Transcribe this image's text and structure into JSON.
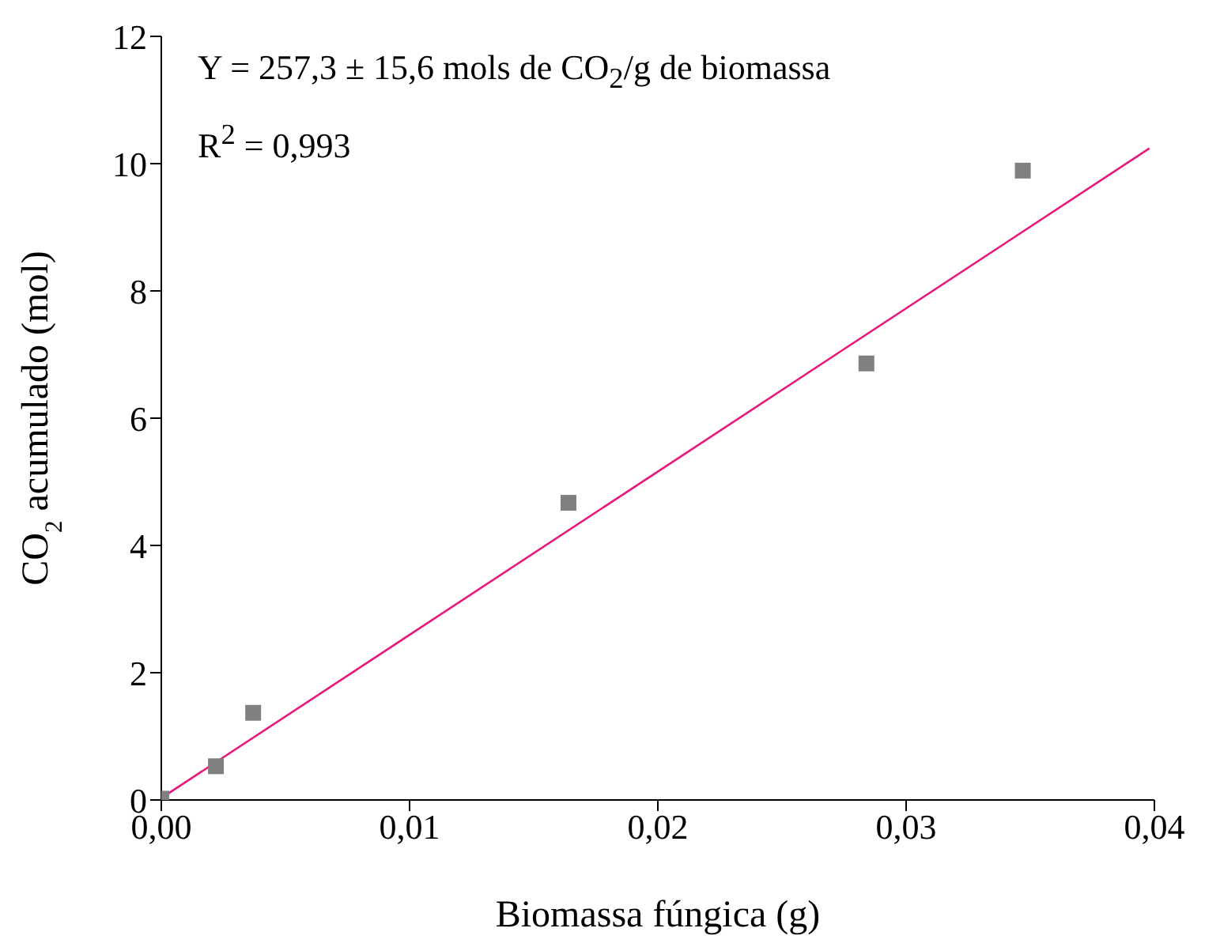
{
  "chart_data": {
    "type": "scatter",
    "xlabel": "Biomassa fúngica (g)",
    "ylabel": "CO$_{2}$ acumulado (mol)",
    "annotations": [
      "Y = 257,3 ± 15,6 mols de CO$_{2}$/g de biomassa",
      "R$^{2}$ = 0,993"
    ],
    "xlim": [
      0,
      0.04
    ],
    "xticks": [
      {
        "value": 0,
        "label": "0,00"
      },
      {
        "value": 0.01,
        "label": "0,01"
      },
      {
        "value": 0.02,
        "label": "0,02"
      },
      {
        "value": 0.03,
        "label": "0,03"
      },
      {
        "value": 0.04,
        "label": "0,04"
      }
    ],
    "ylim": [
      0,
      12
    ],
    "yticks": [
      0,
      2,
      4,
      6,
      8,
      10,
      12
    ],
    "grid": false,
    "series": [
      {
        "marker": "square",
        "color": "#808080",
        "x": [
          0,
          0.0022,
          0.0037,
          0.0164,
          0.0284,
          0.0347
        ],
        "values": [
          0.02,
          0.53,
          1.37,
          4.67,
          6.86,
          9.89
        ]
      },
      {
        "type": "line",
        "marker": "none",
        "color": "#e8197a",
        "x": [
          0,
          0.0398
        ],
        "values": [
          0.03,
          10.24
        ]
      }
    ]
  }
}
